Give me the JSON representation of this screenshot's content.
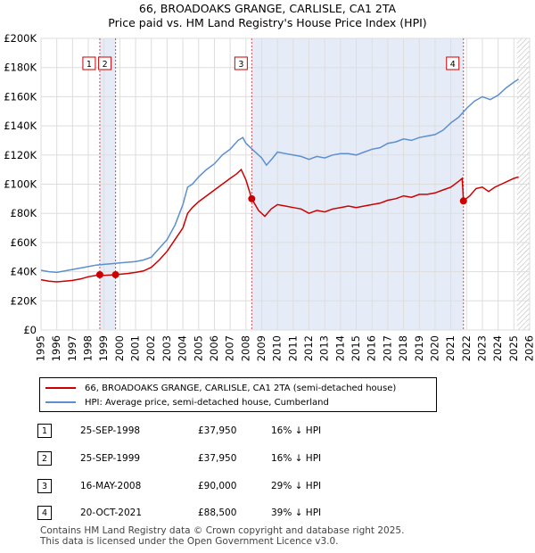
{
  "title_line1": "66, BROADOAKS GRANGE, CARLISLE, CA1 2TA",
  "title_line2": "Price paid vs. HM Land Registry's House Price Index (HPI)",
  "chart_data": {
    "type": "line",
    "x_range": [
      1995,
      2026
    ],
    "y_range": [
      0,
      200000
    ],
    "y_ticks": [
      0,
      20000,
      40000,
      60000,
      80000,
      100000,
      120000,
      140000,
      160000,
      180000,
      200000
    ],
    "y_tick_labels": [
      "£0",
      "£20K",
      "£40K",
      "£60K",
      "£80K",
      "£100K",
      "£120K",
      "£140K",
      "£160K",
      "£180K",
      "£200K"
    ],
    "x_ticks": [
      1995,
      1996,
      1997,
      1998,
      1999,
      2000,
      2001,
      2002,
      2003,
      2004,
      2005,
      2006,
      2007,
      2008,
      2009,
      2010,
      2011,
      2012,
      2013,
      2014,
      2015,
      2016,
      2017,
      2018,
      2019,
      2020,
      2021,
      2022,
      2023,
      2024,
      2025,
      2026
    ],
    "x_tick_labels": [
      "1995",
      "1996",
      "1997",
      "1998",
      "1999",
      "2000",
      "2001",
      "2002",
      "2003",
      "2004",
      "2005",
      "2006",
      "2007",
      "2008",
      "2009",
      "2010",
      "2011",
      "2012",
      "2013",
      "2014",
      "2015",
      "2016",
      "2017",
      "2018",
      "2019",
      "2020",
      "2021",
      "2022",
      "2023",
      "2024",
      "2025",
      "2026"
    ],
    "grid": true,
    "shaded_periods": [
      [
        1998.73,
        1999.73
      ],
      [
        2008.37,
        2021.8
      ]
    ],
    "hatched_from": 2025.2,
    "series": [
      {
        "name": "66, BROADOAKS GRANGE, CARLISLE, CA1 2TA (semi-detached house)",
        "color": "#cc0000",
        "points": [
          [
            1995.0,
            34500
          ],
          [
            1995.5,
            33500
          ],
          [
            1996.0,
            33000
          ],
          [
            1996.5,
            33500
          ],
          [
            1997.0,
            34000
          ],
          [
            1997.5,
            35000
          ],
          [
            1998.0,
            36500
          ],
          [
            1998.73,
            37950
          ],
          [
            1999.0,
            37500
          ],
          [
            1999.73,
            37950
          ],
          [
            2000.0,
            38200
          ],
          [
            2000.5,
            38800
          ],
          [
            2001.0,
            39500
          ],
          [
            2001.5,
            40500
          ],
          [
            2002.0,
            43000
          ],
          [
            2002.5,
            48000
          ],
          [
            2003.0,
            54000
          ],
          [
            2003.5,
            62000
          ],
          [
            2004.0,
            70000
          ],
          [
            2004.3,
            80000
          ],
          [
            2004.6,
            84000
          ],
          [
            2005.0,
            88000
          ],
          [
            2005.5,
            92000
          ],
          [
            2006.0,
            96000
          ],
          [
            2006.5,
            100000
          ],
          [
            2007.0,
            104000
          ],
          [
            2007.4,
            107000
          ],
          [
            2007.7,
            110000
          ],
          [
            2008.0,
            103000
          ],
          [
            2008.37,
            90000
          ],
          [
            2008.8,
            82000
          ],
          [
            2009.2,
            78000
          ],
          [
            2009.6,
            83000
          ],
          [
            2010.0,
            86000
          ],
          [
            2010.5,
            85000
          ],
          [
            2011.0,
            84000
          ],
          [
            2011.5,
            83000
          ],
          [
            2012.0,
            80000
          ],
          [
            2012.5,
            82000
          ],
          [
            2013.0,
            81000
          ],
          [
            2013.5,
            83000
          ],
          [
            2014.0,
            84000
          ],
          [
            2014.5,
            85000
          ],
          [
            2015.0,
            84000
          ],
          [
            2015.5,
            85000
          ],
          [
            2016.0,
            86000
          ],
          [
            2016.5,
            87000
          ],
          [
            2017.0,
            89000
          ],
          [
            2017.5,
            90000
          ],
          [
            2018.0,
            92000
          ],
          [
            2018.5,
            91000
          ],
          [
            2019.0,
            93000
          ],
          [
            2019.5,
            93000
          ],
          [
            2020.0,
            94000
          ],
          [
            2020.5,
            96000
          ],
          [
            2021.0,
            98000
          ],
          [
            2021.5,
            102000
          ],
          [
            2021.72,
            104000
          ],
          [
            2021.8,
            88500
          ],
          [
            2022.2,
            92000
          ],
          [
            2022.6,
            97000
          ],
          [
            2023.0,
            98000
          ],
          [
            2023.4,
            95000
          ],
          [
            2023.8,
            98000
          ],
          [
            2024.2,
            100000
          ],
          [
            2024.6,
            102000
          ],
          [
            2025.0,
            104000
          ],
          [
            2025.3,
            105000
          ]
        ]
      },
      {
        "name": "HPI: Average price, semi-detached house, Cumberland",
        "color": "#5b8fcf",
        "points": [
          [
            1995.0,
            41000
          ],
          [
            1995.5,
            40000
          ],
          [
            1996.0,
            39500
          ],
          [
            1996.5,
            40500
          ],
          [
            1997.0,
            41500
          ],
          [
            1997.5,
            42500
          ],
          [
            1998.0,
            43500
          ],
          [
            1998.5,
            44500
          ],
          [
            1999.0,
            45000
          ],
          [
            1999.5,
            45500
          ],
          [
            2000.0,
            46000
          ],
          [
            2000.5,
            46500
          ],
          [
            2001.0,
            47000
          ],
          [
            2001.5,
            48000
          ],
          [
            2002.0,
            50000
          ],
          [
            2002.5,
            56000
          ],
          [
            2003.0,
            62000
          ],
          [
            2003.5,
            72000
          ],
          [
            2004.0,
            86000
          ],
          [
            2004.3,
            98000
          ],
          [
            2004.6,
            100000
          ],
          [
            2005.0,
            105000
          ],
          [
            2005.5,
            110000
          ],
          [
            2006.0,
            114000
          ],
          [
            2006.5,
            120000
          ],
          [
            2007.0,
            124000
          ],
          [
            2007.5,
            130000
          ],
          [
            2007.8,
            132000
          ],
          [
            2008.0,
            128000
          ],
          [
            2008.5,
            123000
          ],
          [
            2009.0,
            118000
          ],
          [
            2009.3,
            113000
          ],
          [
            2009.7,
            118000
          ],
          [
            2010.0,
            122000
          ],
          [
            2010.5,
            121000
          ],
          [
            2011.0,
            120000
          ],
          [
            2011.5,
            119000
          ],
          [
            2012.0,
            117000
          ],
          [
            2012.5,
            119000
          ],
          [
            2013.0,
            118000
          ],
          [
            2013.5,
            120000
          ],
          [
            2014.0,
            121000
          ],
          [
            2014.5,
            121000
          ],
          [
            2015.0,
            120000
          ],
          [
            2015.5,
            122000
          ],
          [
            2016.0,
            124000
          ],
          [
            2016.5,
            125000
          ],
          [
            2017.0,
            128000
          ],
          [
            2017.5,
            129000
          ],
          [
            2018.0,
            131000
          ],
          [
            2018.5,
            130000
          ],
          [
            2019.0,
            132000
          ],
          [
            2019.5,
            133000
          ],
          [
            2020.0,
            134000
          ],
          [
            2020.5,
            137000
          ],
          [
            2021.0,
            142000
          ],
          [
            2021.5,
            146000
          ],
          [
            2022.0,
            152000
          ],
          [
            2022.5,
            157000
          ],
          [
            2023.0,
            160000
          ],
          [
            2023.5,
            158000
          ],
          [
            2024.0,
            161000
          ],
          [
            2024.5,
            166000
          ],
          [
            2025.0,
            170000
          ],
          [
            2025.3,
            172000
          ]
        ]
      }
    ],
    "sale_markers": [
      {
        "label": "1",
        "x": 1998.73,
        "y": 37950
      },
      {
        "label": "2",
        "x": 1999.73,
        "y": 37950
      },
      {
        "label": "3",
        "x": 2008.37,
        "y": 90000
      },
      {
        "label": "4",
        "x": 2021.8,
        "y": 88500
      }
    ]
  },
  "legend": {
    "items": [
      {
        "label": "66, BROADOAKS GRANGE, CARLISLE, CA1 2TA (semi-detached house)",
        "color": "#cc0000"
      },
      {
        "label": "HPI: Average price, semi-detached house, Cumberland",
        "color": "#5b8fcf"
      }
    ]
  },
  "sales": [
    {
      "num": "1",
      "date": "25-SEP-1998",
      "price": "£37,950",
      "hpi": "16% ↓ HPI"
    },
    {
      "num": "2",
      "date": "25-SEP-1999",
      "price": "£37,950",
      "hpi": "16% ↓ HPI"
    },
    {
      "num": "3",
      "date": "16-MAY-2008",
      "price": "£90,000",
      "hpi": "29% ↓ HPI"
    },
    {
      "num": "4",
      "date": "20-OCT-2021",
      "price": "£88,500",
      "hpi": "39% ↓ HPI"
    }
  ],
  "footer": {
    "line1": "Contains HM Land Registry data © Crown copyright and database right 2025.",
    "line2": "This data is licensed under the Open Government Licence v3.0."
  }
}
